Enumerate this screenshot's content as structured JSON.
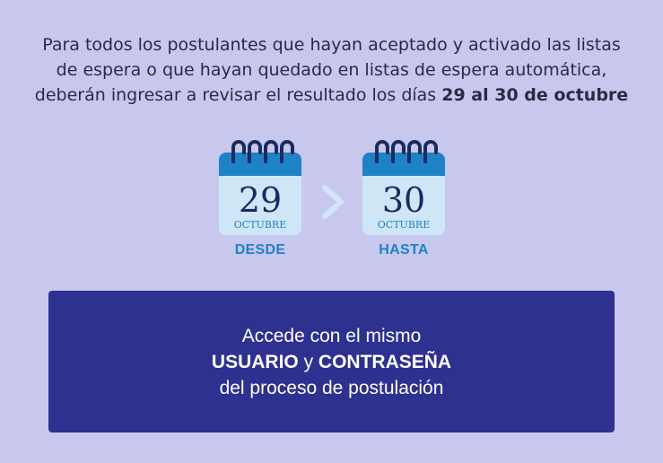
{
  "intro": {
    "line1": "Para todos los postulantes que hayan aceptado y activado las listas",
    "line2": "de espera o que hayan quedado en listas de espera automática,",
    "line3_prefix": "deberán ingresar a revisar el resultado los días ",
    "line3_bold": "29 al 30 de octubre"
  },
  "calendars": [
    {
      "day": "29",
      "month": "OCTUBRE",
      "caption": "DESDE"
    },
    {
      "day": "30",
      "month": "OCTUBRE",
      "caption": "HASTA"
    }
  ],
  "access_box": {
    "line1": "Accede con el mismo",
    "bold_user": "USUARIO",
    "connector": " y ",
    "bold_password": "CONTRASEÑA",
    "line3": "del proceso de postulación"
  },
  "colors": {
    "background": "#c8c8ee",
    "calendar_header": "#1e82c4",
    "calendar_body": "#cfe6f7",
    "rings": "#1c2a5e",
    "box": "#2e3190"
  },
  "icons": [
    "calendar-icon",
    "chevron-right-icon"
  ]
}
